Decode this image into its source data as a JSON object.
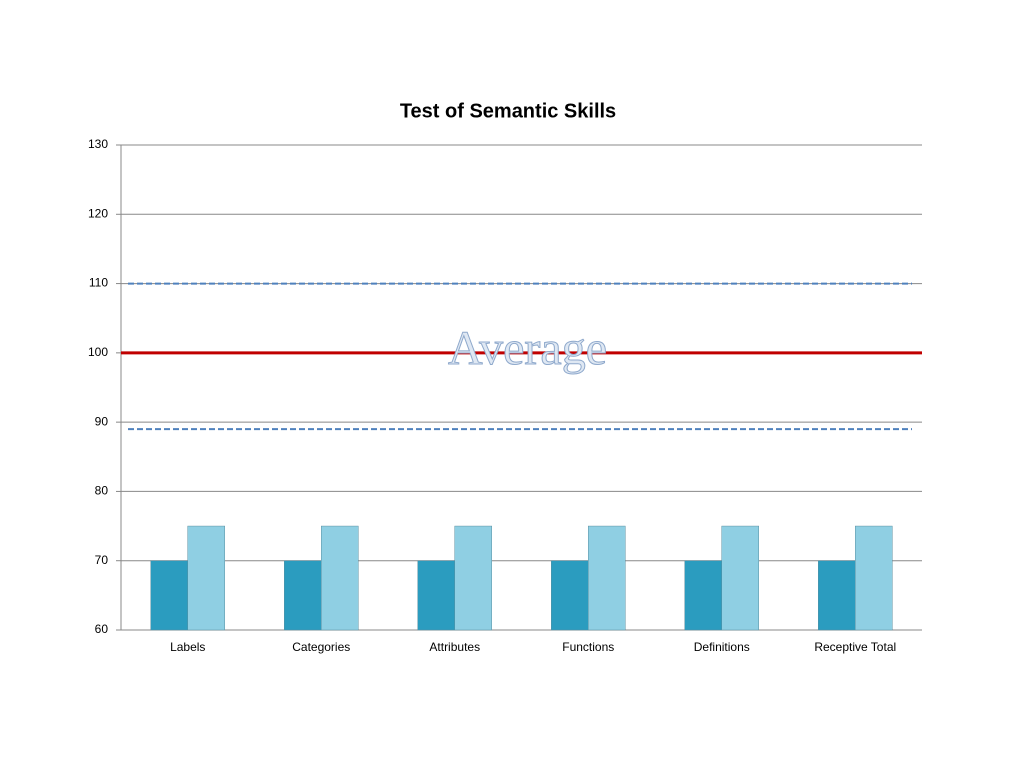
{
  "chart_data": {
    "type": "bar",
    "title": "Test of Semantic Skills",
    "categories": [
      "Labels",
      "Categories",
      "Attributes",
      "Functions",
      "Definitions",
      "Receptive Total"
    ],
    "series": [
      {
        "color": "#2b9cbf",
        "values": [
          70,
          70,
          70,
          70,
          70,
          70
        ]
      },
      {
        "color": "#8fcfe3",
        "values": [
          75,
          75,
          75,
          75,
          75,
          75
        ]
      }
    ],
    "ylim": [
      60,
      130
    ],
    "yticks": [
      60,
      70,
      80,
      90,
      100,
      110,
      120,
      130
    ],
    "grid": true,
    "reference_lines": [
      {
        "value": 110,
        "style": "dashed",
        "color": "#4f81bd"
      },
      {
        "value": 100,
        "style": "solid",
        "color": "#c00000"
      },
      {
        "value": 89,
        "style": "dashed",
        "color": "#4f81bd"
      }
    ],
    "annotations": [
      {
        "text": "Average",
        "y": 100
      }
    ]
  }
}
